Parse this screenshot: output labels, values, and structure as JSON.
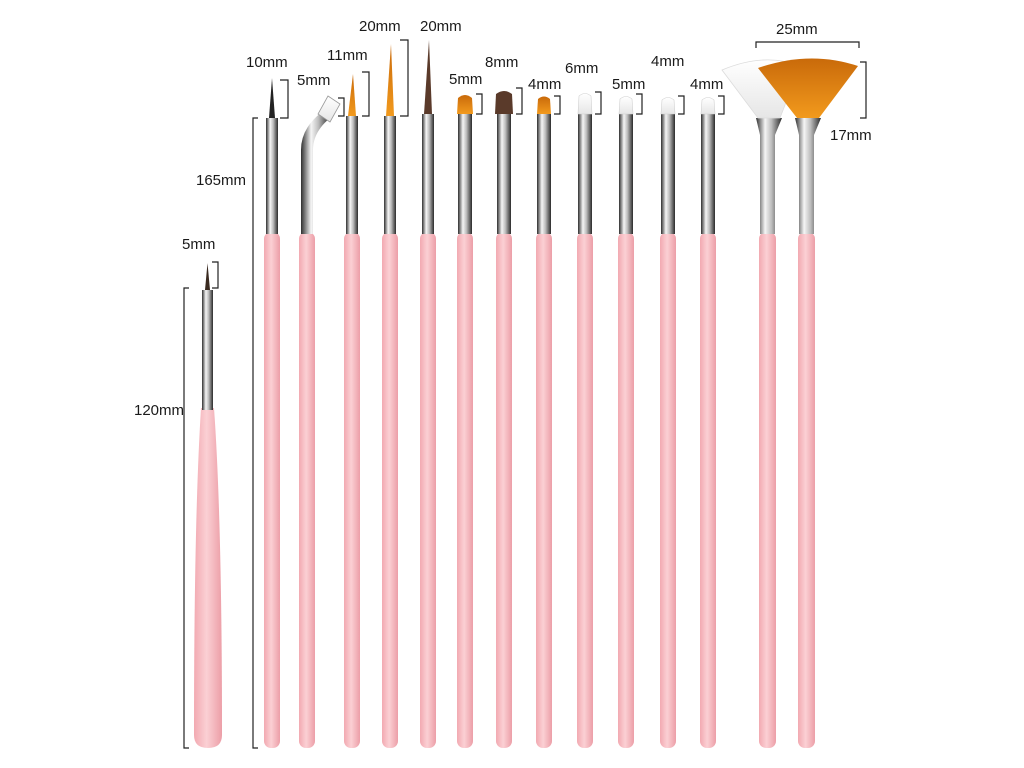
{
  "product": "nail art brush set",
  "colors": {
    "handle": "#f5b7bd",
    "handle_shade": "#e9a0a8",
    "ferrule_light": "#f2f2f2",
    "ferrule_dark": "#3a3a3a",
    "bristle_orange": "#e9850e",
    "bristle_brown": "#5a3a2a",
    "bristle_white": "#f4f4f4",
    "bristle_black": "#222222",
    "label": "#1a1a1a"
  },
  "measurements": {
    "short_brush_length": "120mm",
    "short_brush_tip": "5mm",
    "long_brush_length": "165mm",
    "fan_brush_width": "25mm",
    "fan_brush_height": "17mm"
  },
  "brushes": [
    {
      "id": "liner-10",
      "type": "detail",
      "tip_label": "10mm",
      "bristle": "black"
    },
    {
      "id": "angled-5",
      "type": "angled",
      "tip_label": "5mm",
      "bristle": "white"
    },
    {
      "id": "liner-11",
      "type": "liner",
      "tip_label": "11mm",
      "bristle": "orange"
    },
    {
      "id": "striper-20a",
      "type": "striper",
      "tip_label": "20mm",
      "bristle": "orange"
    },
    {
      "id": "striper-20b",
      "type": "striper",
      "tip_label": "20mm",
      "bristle": "brown"
    },
    {
      "id": "flat-5",
      "type": "flat",
      "tip_label": "5mm",
      "bristle": "orange"
    },
    {
      "id": "flat-8",
      "type": "flat",
      "tip_label": "8mm",
      "bristle": "brown"
    },
    {
      "id": "flat-4",
      "type": "flat",
      "tip_label": "4mm",
      "bristle": "orange"
    },
    {
      "id": "flat-6",
      "type": "flat",
      "tip_label": "6mm",
      "bristle": "white"
    },
    {
      "id": "flat-5w",
      "type": "flat",
      "tip_label": "5mm",
      "bristle": "white"
    },
    {
      "id": "flat-4a",
      "type": "flat",
      "tip_label": "4mm",
      "bristle": "white"
    },
    {
      "id": "flat-4b",
      "type": "flat",
      "tip_label": "4mm",
      "bristle": "white"
    },
    {
      "id": "fan-white",
      "type": "fan",
      "tip_label": "",
      "bristle": "white"
    },
    {
      "id": "fan-orange",
      "type": "fan",
      "tip_label": "",
      "bristle": "orange"
    }
  ]
}
